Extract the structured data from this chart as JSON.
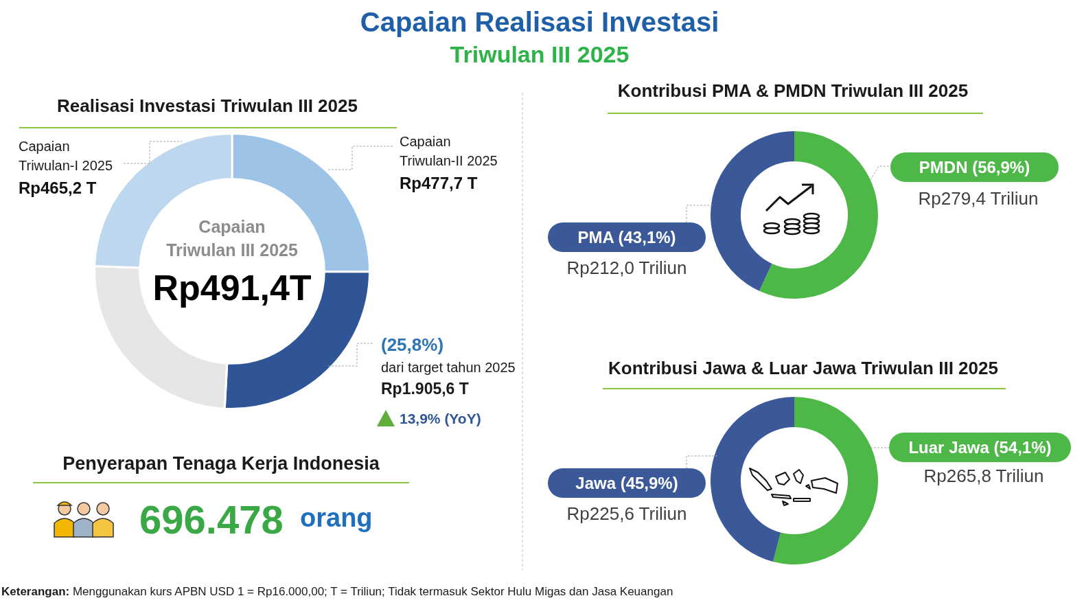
{
  "chart_data": [
    {
      "type": "other",
      "title": "Capaian Realisasi Investasi",
      "subtitle": "Triwulan III 2025",
      "annotations": [
        "Keterangan: Menggunakan kurs APBN USD 1 = Rp16.000,00; T = Triliun;  Tidak termasuk Sektor Hulu Migas dan Jasa Keuangan"
      ]
    },
    {
      "type": "donut",
      "title": "Realisasi Investasi Triwulan III 2025",
      "categories": [
        "Capaian Triwulan-II 2025",
        "Capaian Triwulan III 2025",
        null,
        "Capaian Triwulan-I 2025"
      ],
      "values": [
        477.7,
        491.4,
        471.3,
        465.2
      ],
      "colors": [
        "#9dc3e6",
        "#2f5597",
        "#e7e6e6",
        "#bdd7ee"
      ],
      "value_labels": [
        "Rp477,7 T",
        "Rp491,4T",
        null,
        "Rp465,2 T"
      ],
      "annotations": [
        "(25,8%)",
        "dari target tahun 2025",
        "Rp1.905,6 T",
        "13,9% (YoY)"
      ]
    },
    {
      "type": "donut",
      "title": "Kontribusi PMA & PMDN Triwulan III 2025",
      "categories": [
        "PMDN (56,9%)",
        "PMA (43,1%)"
      ],
      "values": [
        279.4,
        212.0
      ],
      "colors": [
        "#4db848",
        "#3b5998"
      ],
      "value_labels": [
        "Rp279,4 Triliun",
        "Rp212,0 Triliun"
      ]
    },
    {
      "type": "donut",
      "title": "Kontribusi Jawa & Luar Jawa Triwulan III 2025",
      "categories": [
        "Luar Jawa (54,1%)",
        "Jawa (45,9%)"
      ],
      "values": [
        265.8,
        225.6
      ],
      "colors": [
        "#4db848",
        "#3b5998"
      ],
      "value_labels": [
        "Rp265,8 Triliun",
        "Rp225,6 Triliun"
      ]
    },
    {
      "type": "other",
      "title": "Penyerapan Tenaga Kerja Indonesia",
      "annotations": [
        "696.478",
        "orang"
      ]
    }
  ]
}
